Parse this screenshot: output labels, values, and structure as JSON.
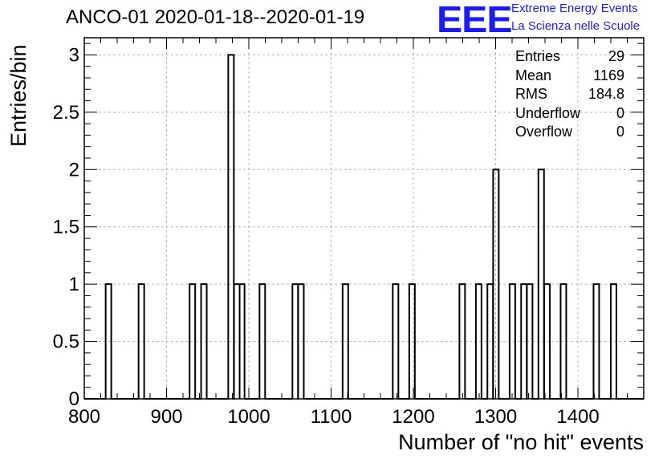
{
  "title": "ANCO-01 2020-01-18--2020-01-19",
  "logo": {
    "mark": "EEE",
    "line1": "Extreme Energy Events",
    "line2": "La Scienza nelle Scuole",
    "color": "#1a1aff"
  },
  "stats": [
    {
      "key": "Entries",
      "value": "29"
    },
    {
      "key": "Mean",
      "value": "1169"
    },
    {
      "key": "RMS",
      "value": "184.8"
    },
    {
      "key": "Underflow",
      "value": "0"
    },
    {
      "key": "Overflow",
      "value": "0"
    }
  ],
  "chart_data": {
    "type": "histogram",
    "xlabel": "Number of \"no hit\" events",
    "ylabel": "Entries/bin",
    "xlim": [
      800,
      1480
    ],
    "ylim": [
      0,
      3.15
    ],
    "bin_width": 6.8,
    "x_ticks": [
      "800",
      "900",
      "1000",
      "1100",
      "1200",
      "1300",
      "1400"
    ],
    "y_ticks": [
      "0",
      "0.5",
      "1",
      "1.5",
      "2",
      "2.5",
      "3"
    ],
    "grid": true,
    "bins": [
      {
        "x0": 826.0,
        "value": 1
      },
      {
        "x0": 866.0,
        "value": 1
      },
      {
        "x0": 928.0,
        "value": 1
      },
      {
        "x0": 942.0,
        "value": 1
      },
      {
        "x0": 975.0,
        "value": 3
      },
      {
        "x0": 982.0,
        "value": 1
      },
      {
        "x0": 988.0,
        "value": 1
      },
      {
        "x0": 1013.0,
        "value": 1
      },
      {
        "x0": 1053.0,
        "value": 1
      },
      {
        "x0": 1060.0,
        "value": 1
      },
      {
        "x0": 1114.0,
        "value": 1
      },
      {
        "x0": 1175.0,
        "value": 1
      },
      {
        "x0": 1195.0,
        "value": 1
      },
      {
        "x0": 1256.0,
        "value": 1
      },
      {
        "x0": 1276.0,
        "value": 1
      },
      {
        "x0": 1290.0,
        "value": 1
      },
      {
        "x0": 1297.0,
        "value": 2
      },
      {
        "x0": 1317.0,
        "value": 1
      },
      {
        "x0": 1331.0,
        "value": 1
      },
      {
        "x0": 1338.0,
        "value": 1
      },
      {
        "x0": 1352.0,
        "value": 2
      },
      {
        "x0": 1359.0,
        "value": 1
      },
      {
        "x0": 1379.0,
        "value": 1
      },
      {
        "x0": 1419.0,
        "value": 1
      },
      {
        "x0": 1440.0,
        "value": 1
      }
    ]
  }
}
